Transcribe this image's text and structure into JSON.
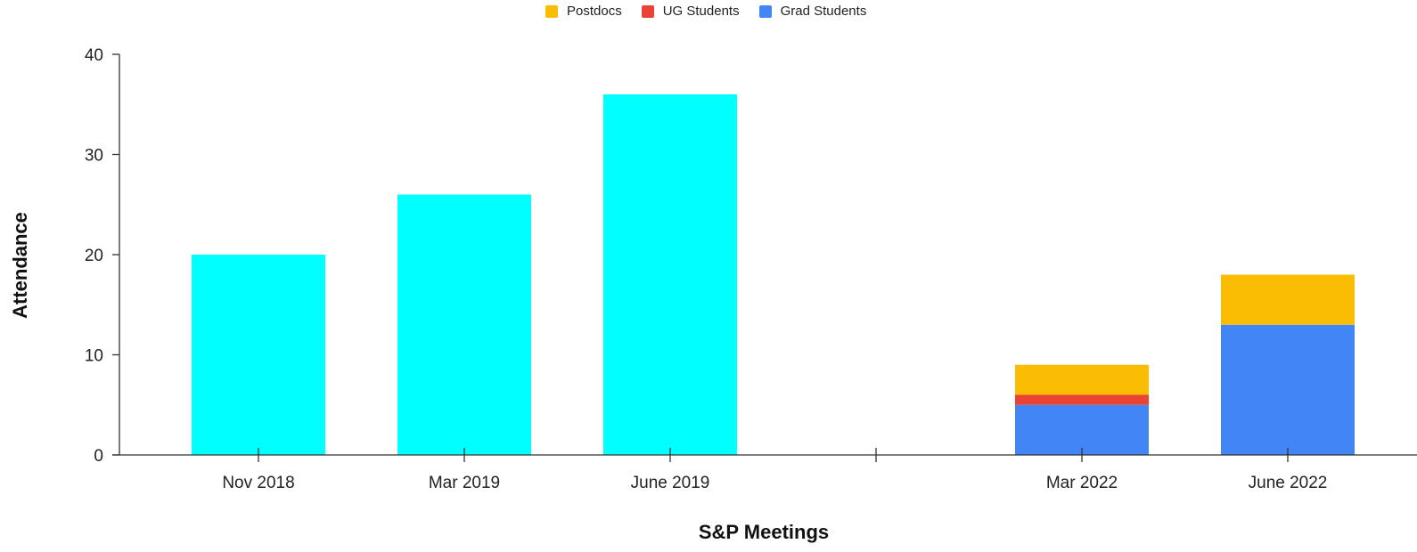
{
  "chart_data": {
    "type": "bar",
    "stacked": true,
    "categories": [
      "Nov 2018",
      "Mar 2019",
      "June 2019",
      "",
      "Mar 2022",
      "June 2022"
    ],
    "series": [
      {
        "name": "",
        "color": "#00FFFF",
        "values": [
          20,
          26,
          36,
          0,
          0,
          0
        ]
      },
      {
        "name": "Grad Students",
        "color": "#4285F4",
        "values": [
          0,
          0,
          0,
          0,
          5,
          13
        ]
      },
      {
        "name": "UG Students",
        "color": "#EA4335",
        "values": [
          0,
          0,
          0,
          0,
          1,
          0
        ]
      },
      {
        "name": "Postdocs",
        "color": "#FBBC04",
        "values": [
          0,
          0,
          0,
          0,
          3,
          5
        ]
      }
    ],
    "legend": {
      "position": "top",
      "entries": [
        {
          "label": "Postdocs",
          "color": "#FBBC04"
        },
        {
          "label": "UG Students",
          "color": "#EA4335"
        },
        {
          "label": "Grad Students",
          "color": "#4285F4"
        }
      ]
    },
    "xlabel": "S&P Meetings",
    "ylabel": "Attendance",
    "ylim": [
      0,
      40
    ],
    "yticks": [
      0,
      10,
      20,
      30,
      40
    ],
    "grid": false
  }
}
